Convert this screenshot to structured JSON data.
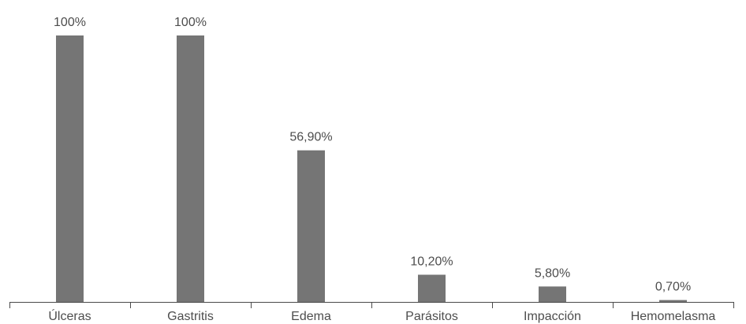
{
  "chart_data": {
    "type": "bar",
    "categories": [
      "Úlceras",
      "Gastritis",
      "Edema",
      "Parásitos",
      "Impacción",
      "Hemomelasma"
    ],
    "values": [
      100,
      100,
      56.9,
      10.2,
      5.8,
      0.7
    ],
    "data_labels": [
      "100%",
      "100%",
      "56,90%",
      "10,20%",
      "5,80%",
      "0,70%"
    ],
    "title": "",
    "xlabel": "",
    "ylabel": "",
    "ylim": [
      0,
      100
    ],
    "grid": false,
    "legend": "none",
    "bar_color": "#757575"
  }
}
